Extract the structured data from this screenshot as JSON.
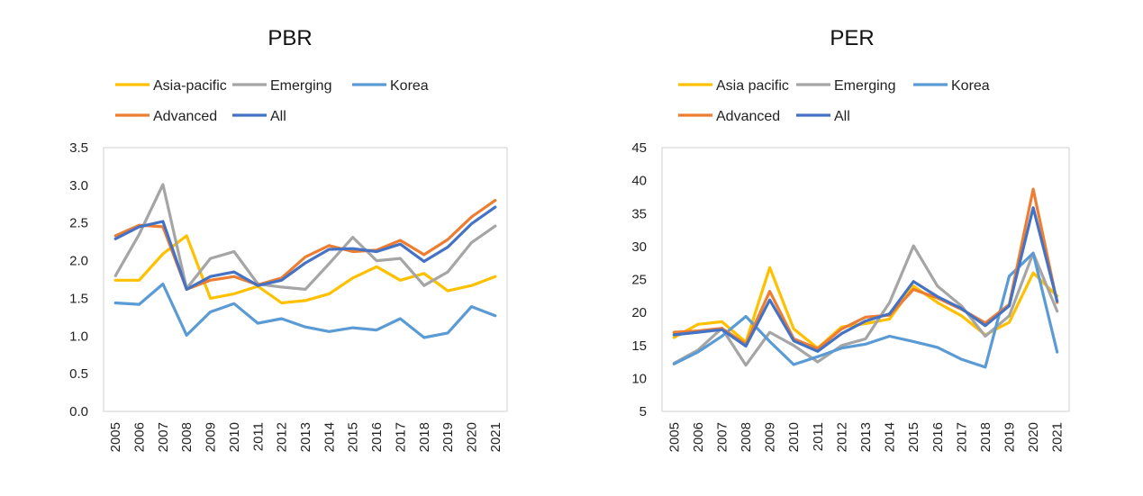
{
  "chart_data": [
    {
      "type": "line",
      "title": "PBR",
      "xlabel": "",
      "ylabel": "",
      "ylim": [
        0,
        3.5
      ],
      "ytick_step": 0.5,
      "ytick_decimals": 1,
      "grid": false,
      "legend_position": "top",
      "categories": [
        "2005",
        "2006",
        "2007",
        "2008",
        "2009",
        "2010",
        "2011",
        "2012",
        "2013",
        "2014",
        "2015",
        "2016",
        "2017",
        "2018",
        "2019",
        "2020",
        "2021"
      ],
      "series": [
        {
          "name": "Asia-pacific",
          "color": "#FFC000",
          "values": [
            1.74,
            1.74,
            2.09,
            2.33,
            1.5,
            1.56,
            1.66,
            1.44,
            1.47,
            1.56,
            1.77,
            1.92,
            1.74,
            1.83,
            1.6,
            1.67,
            1.79
          ]
        },
        {
          "name": "Emerging",
          "color": "#A5A5A5",
          "values": [
            1.8,
            2.35,
            3.01,
            1.63,
            2.03,
            2.12,
            1.69,
            1.65,
            1.62,
            1.96,
            2.31,
            2.0,
            2.03,
            1.67,
            1.85,
            2.24,
            2.46
          ]
        },
        {
          "name": "Korea",
          "color": "#5B9BD5",
          "values": [
            1.44,
            1.42,
            1.69,
            1.01,
            1.32,
            1.43,
            1.17,
            1.23,
            1.12,
            1.06,
            1.11,
            1.08,
            1.23,
            0.98,
            1.04,
            1.39,
            1.27
          ]
        },
        {
          "name": "Advanced",
          "color": "#ED7D31",
          "values": [
            2.33,
            2.47,
            2.45,
            1.62,
            1.74,
            1.79,
            1.68,
            1.77,
            2.05,
            2.2,
            2.12,
            2.14,
            2.27,
            2.08,
            2.28,
            2.58,
            2.8
          ]
        },
        {
          "name": "All",
          "color": "#4472C4",
          "values": [
            2.29,
            2.45,
            2.52,
            1.62,
            1.79,
            1.85,
            1.67,
            1.74,
            1.97,
            2.15,
            2.16,
            2.12,
            2.22,
            1.99,
            2.18,
            2.49,
            2.71
          ]
        }
      ]
    },
    {
      "type": "line",
      "title": "PER",
      "xlabel": "",
      "ylabel": "",
      "ylim": [
        5,
        45
      ],
      "ytick_step": 5,
      "ytick_decimals": 0,
      "grid": false,
      "legend_position": "top",
      "categories": [
        "2005",
        "2006",
        "2007",
        "2008",
        "2009",
        "2010",
        "2011",
        "2012",
        "2013",
        "2014",
        "2015",
        "2016",
        "2017",
        "2018",
        "2019",
        "2020",
        "2021"
      ],
      "series": [
        {
          "name": "Asia pacific",
          "color": "#FFC000",
          "values": [
            16.2,
            18.2,
            18.6,
            15.5,
            26.8,
            17.5,
            14.6,
            17.8,
            18.3,
            19.0,
            24.0,
            21.5,
            19.5,
            16.6,
            18.5,
            26.0,
            22.5
          ]
        },
        {
          "name": "Emerging",
          "color": "#A5A5A5",
          "values": [
            12.3,
            14.3,
            17.6,
            12.0,
            17.0,
            15.0,
            12.5,
            15.0,
            16.0,
            21.5,
            30.1,
            24.0,
            21.0,
            16.4,
            19.5,
            29.0,
            20.2
          ]
        },
        {
          "name": "Korea",
          "color": "#5B9BD5",
          "values": [
            12.2,
            14.0,
            16.4,
            19.4,
            15.6,
            12.1,
            13.3,
            14.6,
            15.2,
            16.4,
            15.6,
            14.7,
            12.9,
            11.7,
            25.5,
            29.0,
            14.0
          ]
        },
        {
          "name": "Advanced",
          "color": "#ED7D31",
          "values": [
            17.0,
            17.2,
            17.6,
            15.2,
            23.2,
            16.0,
            14.5,
            17.5,
            19.3,
            19.6,
            23.5,
            22.2,
            20.5,
            18.4,
            21.2,
            38.7,
            21.5
          ]
        },
        {
          "name": "All",
          "color": "#4472C4",
          "values": [
            16.6,
            17.0,
            17.4,
            14.9,
            21.9,
            15.7,
            14.1,
            16.8,
            18.7,
            19.8,
            24.7,
            22.4,
            20.6,
            18.0,
            21.0,
            35.9,
            21.7
          ]
        }
      ]
    }
  ]
}
